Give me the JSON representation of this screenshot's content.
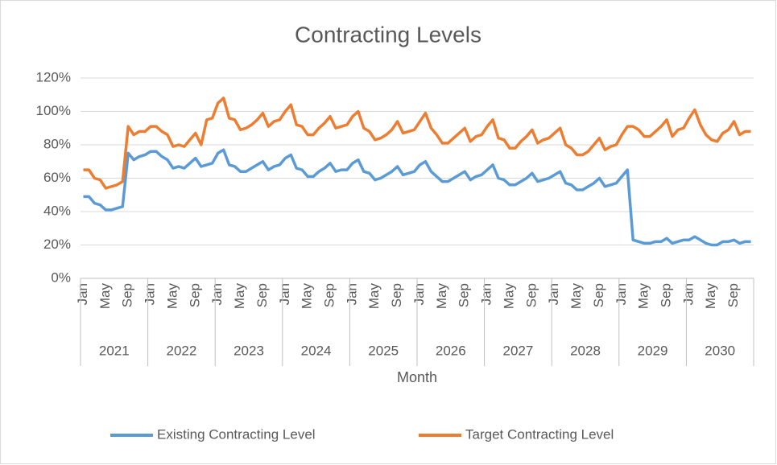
{
  "chart_data": {
    "type": "line",
    "title": "Contracting Levels",
    "x_label": "Month",
    "categories": [
      "Jan",
      null,
      null,
      null,
      "May",
      null,
      null,
      null,
      "Sep",
      null,
      null,
      null,
      "Jan",
      null,
      null,
      null,
      "May",
      null,
      null,
      null,
      "Sep",
      null,
      null,
      null,
      "Jan",
      null,
      null,
      null,
      "May",
      null,
      null,
      null,
      "Sep",
      null,
      null,
      null,
      "Jan",
      null,
      null,
      null,
      "May",
      null,
      null,
      null,
      "Sep",
      null,
      null,
      null,
      "Jan",
      null,
      null,
      null,
      "May",
      null,
      null,
      null,
      "Sep",
      null,
      null,
      null,
      "Jan",
      null,
      null,
      null,
      "May",
      null,
      null,
      null,
      "Sep",
      null,
      null,
      null,
      "Jan",
      null,
      null,
      null,
      "May",
      null,
      null,
      null,
      "Sep",
      null,
      null,
      null,
      "Jan",
      null,
      null,
      null,
      "May",
      null,
      null,
      null,
      "Sep",
      null,
      null,
      null,
      "Jan",
      null,
      null,
      null,
      "May",
      null,
      null,
      null,
      "Sep",
      null,
      null,
      null,
      "Jan",
      null,
      null,
      null,
      "May",
      null,
      null,
      null,
      "Sep",
      null,
      null,
      null
    ],
    "years": [
      "2021",
      "2022",
      "2023",
      "2024",
      "2025",
      "2026",
      "2027",
      "2028",
      "2029",
      "2030"
    ],
    "series": [
      {
        "name": "Existing Contracting Level",
        "color": "#5b9bd5",
        "values": [
          49,
          49,
          45,
          44,
          41,
          41,
          42,
          43,
          75,
          71,
          73,
          74,
          76,
          76,
          73,
          71,
          66,
          67,
          66,
          69,
          72,
          67,
          68,
          69,
          75,
          77,
          68,
          67,
          64,
          64,
          66,
          68,
          70,
          65,
          67,
          68,
          72,
          74,
          66,
          65,
          61,
          61,
          64,
          66,
          69,
          64,
          65,
          65,
          69,
          71,
          64,
          63,
          59,
          60,
          62,
          64,
          67,
          62,
          63,
          64,
          68,
          70,
          64,
          61,
          58,
          58,
          60,
          62,
          64,
          59,
          61,
          62,
          65,
          68,
          60,
          59,
          56,
          56,
          58,
          60,
          63,
          58,
          59,
          60,
          62,
          64,
          57,
          56,
          53,
          53,
          55,
          57,
          60,
          55,
          56,
          57,
          61,
          65,
          23,
          22,
          21,
          21,
          22,
          22,
          24,
          21,
          22,
          23,
          23,
          25,
          23,
          21,
          20,
          20,
          22,
          22,
          23,
          21,
          22,
          22
        ]
      },
      {
        "name": "Target Contracting Level",
        "color": "#ed7d31",
        "values": [
          65,
          65,
          60,
          59,
          54,
          55,
          56,
          58,
          91,
          86,
          88,
          88,
          91,
          91,
          88,
          86,
          79,
          80,
          79,
          83,
          87,
          80,
          95,
          96,
          105,
          108,
          96,
          95,
          89,
          90,
          92,
          95,
          99,
          91,
          94,
          95,
          100,
          104,
          92,
          91,
          86,
          86,
          90,
          93,
          97,
          90,
          91,
          92,
          97,
          100,
          90,
          88,
          83,
          84,
          86,
          89,
          94,
          87,
          88,
          89,
          94,
          99,
          90,
          86,
          81,
          81,
          84,
          87,
          90,
          82,
          85,
          86,
          91,
          95,
          84,
          83,
          78,
          78,
          82,
          85,
          89,
          81,
          83,
          84,
          87,
          90,
          80,
          78,
          74,
          74,
          76,
          80,
          84,
          77,
          79,
          80,
          86,
          91,
          91,
          89,
          85,
          85,
          88,
          91,
          95,
          85,
          89,
          90,
          96,
          101,
          92,
          86,
          83,
          82,
          87,
          89,
          94,
          86,
          88,
          88
        ]
      }
    ],
    "ylim": [
      0,
      120
    ],
    "yticks": [
      {
        "value": 0,
        "label": "0%"
      },
      {
        "value": 20,
        "label": "20%"
      },
      {
        "value": 40,
        "label": "40%"
      },
      {
        "value": 60,
        "label": "60%"
      },
      {
        "value": 80,
        "label": "80%"
      },
      {
        "value": 100,
        "label": "100%"
      },
      {
        "value": 120,
        "label": "120%"
      }
    ],
    "grid": true,
    "legend": "bottom"
  }
}
